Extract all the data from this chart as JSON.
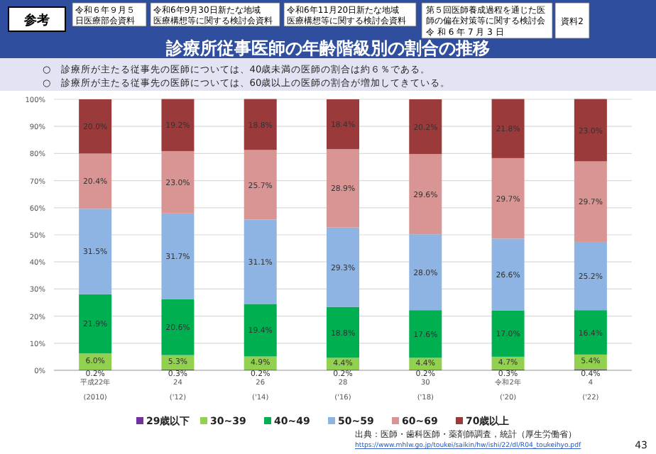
{
  "chart_data": {
    "type": "bar",
    "stacked": true,
    "title": "診療所従事医師の年齢階級別の割合の推移",
    "categories": [
      "平成22年\n(2010)",
      "24\n('12)",
      "26\n('14)",
      "28\n('16)",
      "30\n('18)",
      "令和2年\n('20)",
      "4\n('22)"
    ],
    "series": [
      {
        "name": "29歳以下",
        "color": "#7030a0",
        "values": [
          0.2,
          0.3,
          0.2,
          0.2,
          0.2,
          0.3,
          0.4
        ],
        "value_labels": [
          "0.2%",
          "0.3%",
          "0.2%",
          "0.2%",
          "0.2%",
          "0.3%",
          "0.4%"
        ]
      },
      {
        "name": "30~39",
        "color": "#92d050",
        "values": [
          6.0,
          5.3,
          4.9,
          4.4,
          4.4,
          4.7,
          5.4
        ],
        "value_labels": [
          "6.0%",
          "5.3%",
          "4.9%",
          "4.4%",
          "4.4%",
          "4.7%",
          "5.4%"
        ]
      },
      {
        "name": "40~49",
        "color": "#00b050",
        "values": [
          21.9,
          20.6,
          19.4,
          18.8,
          17.6,
          17.0,
          16.4
        ],
        "value_labels": [
          "21.9%",
          "20.6%",
          "19.4%",
          "18.8%",
          "17.6%",
          "17.0%",
          "16.4%"
        ]
      },
      {
        "name": "50~59",
        "color": "#8eb4e3",
        "values": [
          31.5,
          31.7,
          31.1,
          29.3,
          28.0,
          26.6,
          25.2
        ],
        "value_labels": [
          "31.5%",
          "31.7%",
          "31.1%",
          "29.3%",
          "28.0%",
          "26.6%",
          "25.2%"
        ]
      },
      {
        "name": "60~69",
        "color": "#d99594",
        "values": [
          20.4,
          23.0,
          25.7,
          28.9,
          29.6,
          29.7,
          29.7
        ],
        "value_labels": [
          "20.4%",
          "23.0%",
          "25.7%",
          "28.9%",
          "29.6%",
          "29.7%",
          "29.7%"
        ]
      },
      {
        "name": "70歳以上",
        "color": "#9b3a3a",
        "values": [
          20.0,
          19.2,
          18.8,
          18.4,
          20.2,
          21.8,
          23.0
        ],
        "value_labels": [
          "20.0%",
          "19.2%",
          "18.8%",
          "18.4%",
          "20.2%",
          "21.8%",
          "23.0%"
        ]
      }
    ],
    "ylim": [
      0,
      100
    ],
    "yticks": [
      {
        "value": 0,
        "label": "0%"
      },
      {
        "value": 10,
        "label": "10%"
      },
      {
        "value": 20,
        "label": "20%"
      },
      {
        "value": 30,
        "label": "30%"
      },
      {
        "value": 40,
        "label": "40%"
      },
      {
        "value": 50,
        "label": "50%"
      },
      {
        "value": 60,
        "label": "60%"
      },
      {
        "value": 70,
        "label": "70%"
      },
      {
        "value": 80,
        "label": "80%"
      },
      {
        "value": 90,
        "label": "90%"
      },
      {
        "value": 100,
        "label": "100%"
      }
    ],
    "grid": "y",
    "legend": "bottom",
    "annotations": [
      "参考",
      "令和６年９月５日医療部会資料",
      "令和6年9月30日新たな地域医療構想等に関する検討会資料",
      "令和6年11月20日新たな地域医療構想等に関する検討会資料",
      "第５回医師養成過程を通じた医師の偏在対策等に関する検討会",
      "令 和 6 年 7 月 3 日",
      "資料2",
      "○　診療所が主たる従事先の医師については、40歳未満の医師の割合は約６％である。",
      "○　診療所が主たる従事先の医師については、60歳以上の医師の割合が増加してきている。",
      "出典：医師・歯科医師・薬剤師調査，統計（厚生労働省）",
      "https://www.mhlw.go.jp/toukei/saikin/hw/ishi/22/dl/R04_toukeihyo.pdf",
      "43"
    ]
  }
}
